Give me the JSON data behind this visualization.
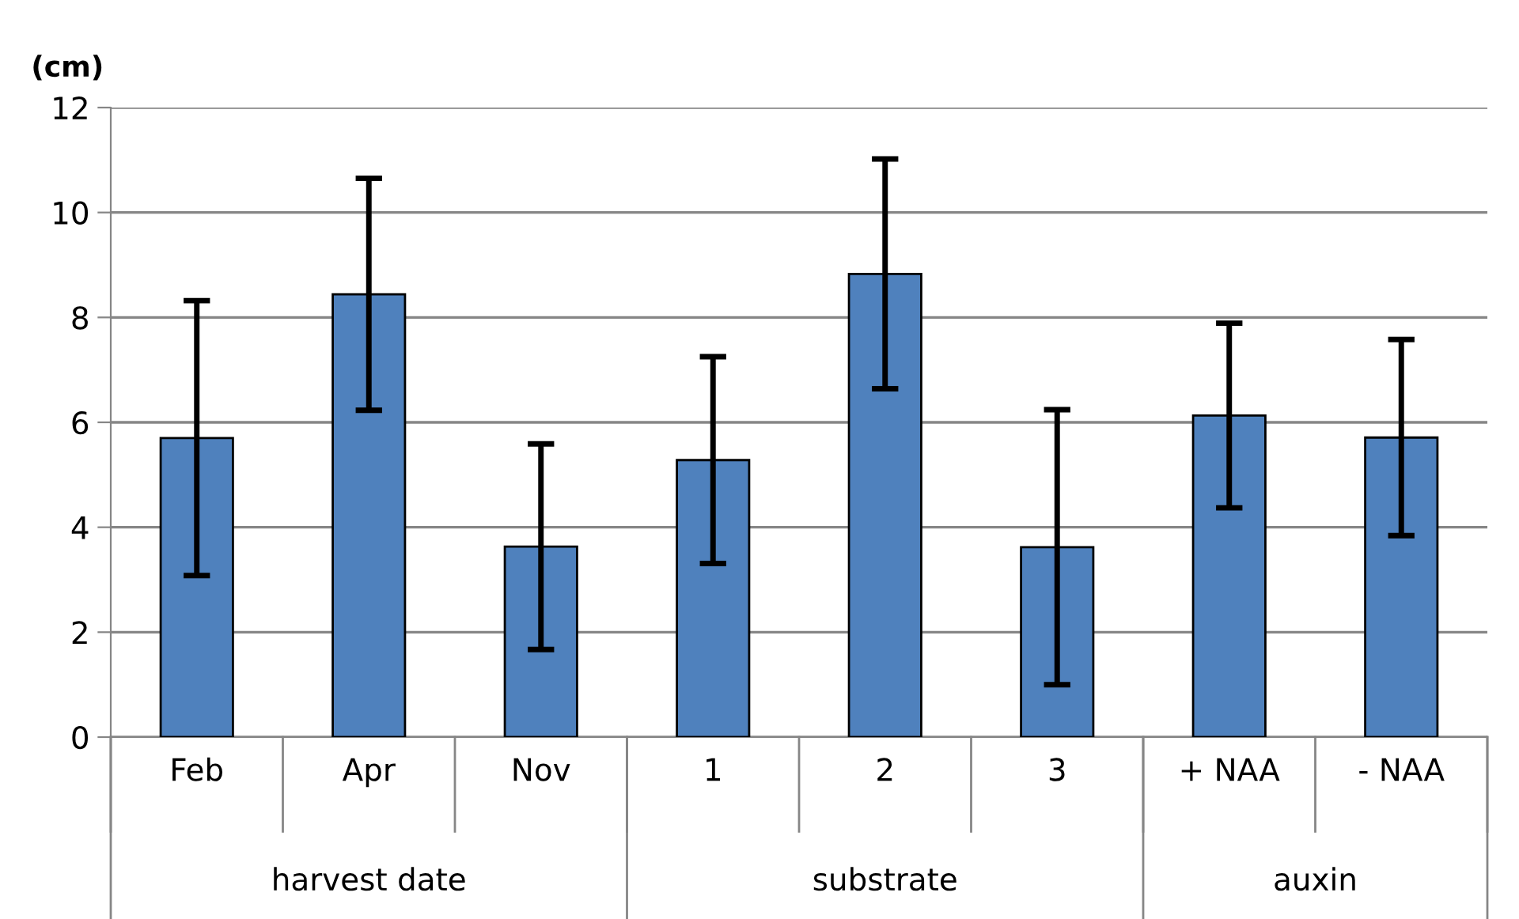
{
  "chart_data": {
    "type": "bar",
    "ylabel": "(cm)",
    "categories": [
      "Feb",
      "Apr",
      "Nov",
      "1",
      "2",
      "3",
      "+ NAA",
      "- NAA"
    ],
    "values": [
      5.7,
      8.44,
      3.63,
      5.28,
      8.83,
      3.62,
      6.13,
      5.71
    ],
    "errors": [
      2.62,
      2.21,
      1.96,
      1.97,
      2.19,
      2.62,
      1.76,
      1.87
    ],
    "color": "#4f81bd",
    "ylim": [
      0,
      12
    ],
    "yticks": [
      0,
      2,
      4,
      6,
      8,
      10,
      12
    ],
    "grid": "y",
    "legend": false,
    "annotations": [
      "harvest date",
      "substrate",
      "auxin"
    ]
  }
}
